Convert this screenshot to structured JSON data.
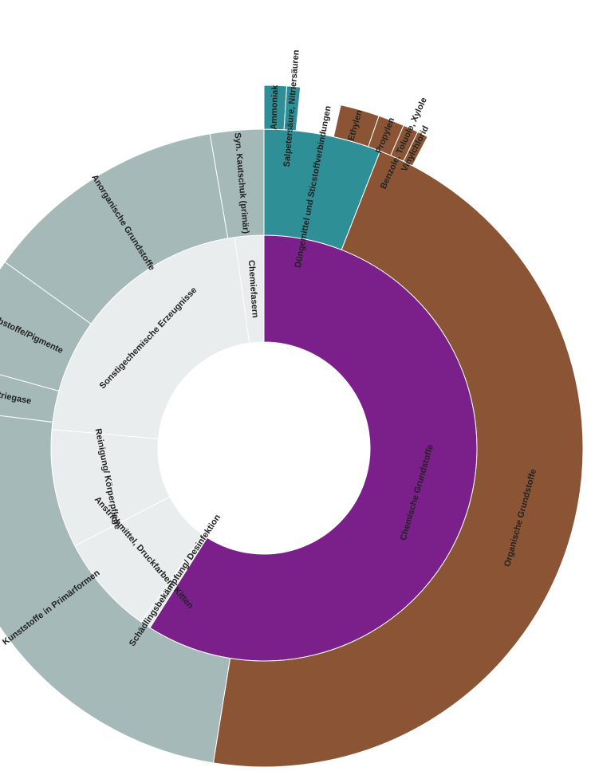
{
  "chart_data": {
    "type": "sunburst",
    "unit": "share of chemical production (estimated)",
    "colors": {
      "purple": "#7b1f8a",
      "brown": "#8b5535",
      "teal": "#2e8f97",
      "gray": "#a5b9b8",
      "light": "#e9eded"
    },
    "rings": [
      {
        "ring": "inner",
        "segments": [
          {
            "label": "Chemische Grundstoffe",
            "value": 59.0,
            "color": "#7b1f8a"
          },
          {
            "label": "Schädlingsbekämpfung/ Desinfektion",
            "value": 0.8,
            "color": "#e9eded"
          },
          {
            "label": "Anstrichmittel, Druckfarben, Kitten",
            "value": 7.6,
            "color": "#e9eded"
          },
          {
            "label": "Reinigung/ Körperpflege",
            "value": 9.0,
            "color": "#e9eded"
          },
          {
            "label": "Sonstigechemische Erzeugnisse",
            "value": 21.4,
            "color": "#e9eded"
          },
          {
            "label": "Chemiefasern",
            "value": 2.2,
            "color": "#e9eded"
          }
        ]
      },
      {
        "ring": "middle",
        "segments": [
          {
            "label": "Düngemittel und Sticstoffverbindungen",
            "value": 3.5,
            "color": "#2e8f97"
          },
          {
            "label": "Organische Grundstoffe",
            "value": 27.5,
            "color": "#8b5535"
          },
          {
            "label": "Kunststoffe in Primärformen",
            "value": 14.4,
            "color": "#a5b9b8"
          },
          {
            "label": "Industriegase",
            "value": 1.4,
            "color": "#a5b9b8"
          },
          {
            "label": "Farbstoffe/Pigmente",
            "value": 3.3,
            "color": "#a5b9b8"
          },
          {
            "label": "Anorganische Grundstoffe",
            "value": 7.3,
            "color": "#a5b9b8"
          },
          {
            "label": "Syn. Kautschuk (primär)",
            "value": 1.6,
            "color": "#a5b9b8"
          }
        ]
      },
      {
        "ring": "outer",
        "segments": [
          {
            "label": "Ammoniak",
            "value": 1.0,
            "color": "#2e8f97"
          },
          {
            "label": "Salpetersäure, Nitriersäuren",
            "value": 0.6,
            "color": "#2e8f97"
          },
          {
            "label": "Ethylen",
            "value": 1.8,
            "color": "#8b5535"
          },
          {
            "label": "Propylen",
            "value": 1.2,
            "color": "#8b5535"
          },
          {
            "label": "Benzole, Toluole, Xylole",
            "value": 0.7,
            "color": "#8b5535"
          },
          {
            "label": "Vinylchlorid",
            "value": 0.5,
            "color": "#8b5535"
          }
        ]
      }
    ],
    "title": "",
    "legend": "none"
  }
}
